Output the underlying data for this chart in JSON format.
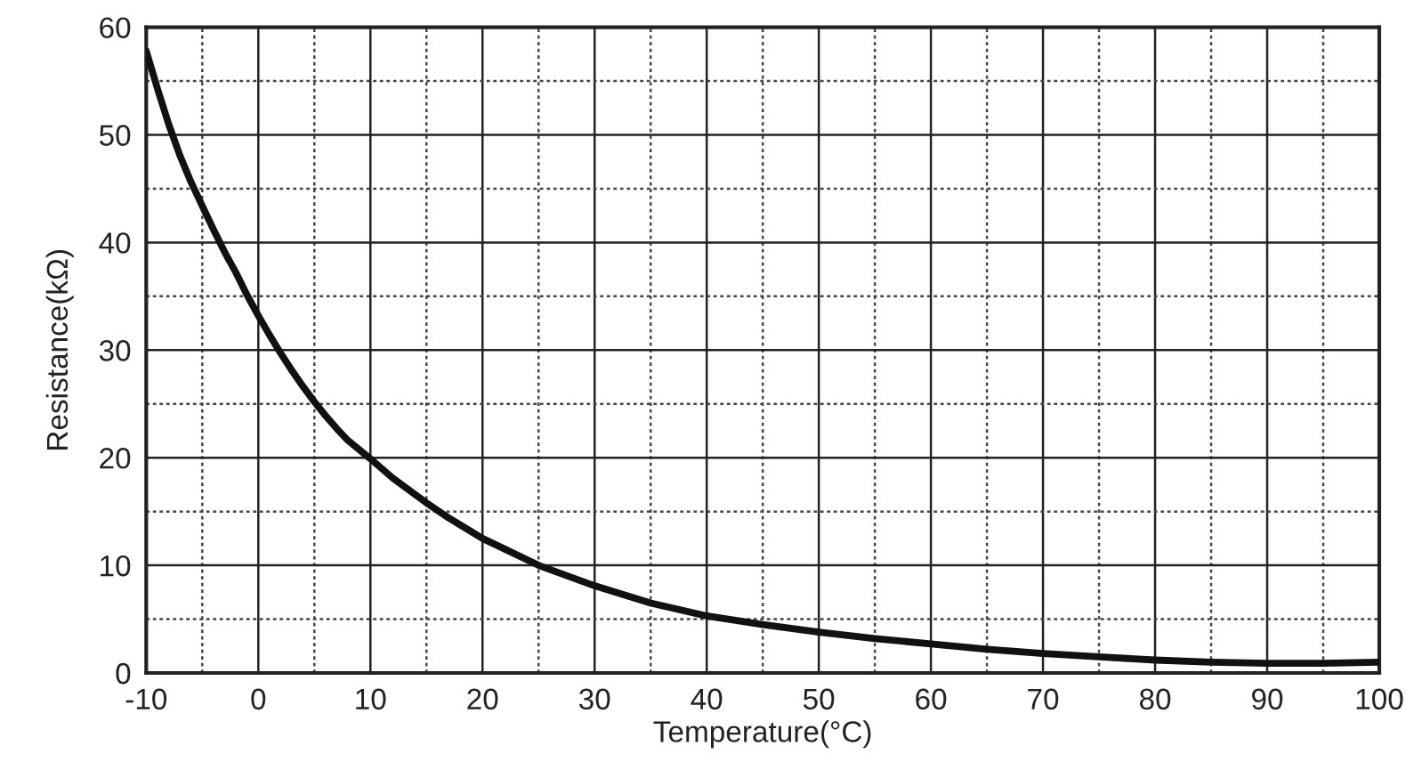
{
  "chart_data": {
    "type": "line",
    "xlabel": "Temperature(°C)",
    "ylabel": "Resistance(kΩ)",
    "x": [
      -10,
      -9,
      -8,
      -7,
      -6,
      -5,
      -4,
      -3,
      -2,
      -1,
      0,
      1,
      2,
      3,
      4,
      5,
      6,
      7,
      8,
      10,
      12,
      15,
      17,
      20,
      25,
      30,
      35,
      40,
      45,
      50,
      55,
      60,
      65,
      70,
      75,
      80,
      85,
      90,
      95,
      100
    ],
    "series": [
      {
        "color": "#111111",
        "values": [
          57.8,
          54.3,
          51,
          48.1,
          45.6,
          43.4,
          41.2,
          39.1,
          37.2,
          35.1,
          33.2,
          31.4,
          29.7,
          28.1,
          26.6,
          25.2,
          23.9,
          22.7,
          21.6,
          19.9,
          18.1,
          15.8,
          14.4,
          12.5,
          10,
          8.1,
          6.5,
          5.3,
          4.5,
          3.8,
          3.2,
          2.7,
          2.2,
          1.8,
          1.5,
          1.2,
          1.0,
          0.9,
          0.9,
          1.0
        ]
      }
    ],
    "xlim": [
      -10,
      100
    ],
    "ylim": [
      0,
      60
    ],
    "xticks": [
      -10,
      {
        "value": -5,
        "label": null
      },
      0,
      {
        "value": 5,
        "label": null
      },
      10,
      {
        "value": 15,
        "label": null
      },
      20,
      {
        "value": 25,
        "label": null
      },
      30,
      {
        "value": 35,
        "label": null
      },
      40,
      {
        "value": 45,
        "label": null
      },
      50,
      {
        "value": 55,
        "label": null
      },
      60,
      {
        "value": 65,
        "label": null
      },
      70,
      {
        "value": 75,
        "label": null
      },
      80,
      {
        "value": 85,
        "label": null
      },
      90,
      {
        "value": 95,
        "label": null
      },
      100
    ],
    "yticks": [
      0,
      {
        "value": 5,
        "label": null
      },
      10,
      {
        "value": 15,
        "label": null
      },
      20,
      {
        "value": 25,
        "label": null
      },
      30,
      {
        "value": 35,
        "label": null
      },
      40,
      {
        "value": 45,
        "label": null
      },
      50,
      {
        "value": 55,
        "label": null
      },
      60
    ],
    "grid": true,
    "marker": "none",
    "line_style": "solid"
  }
}
